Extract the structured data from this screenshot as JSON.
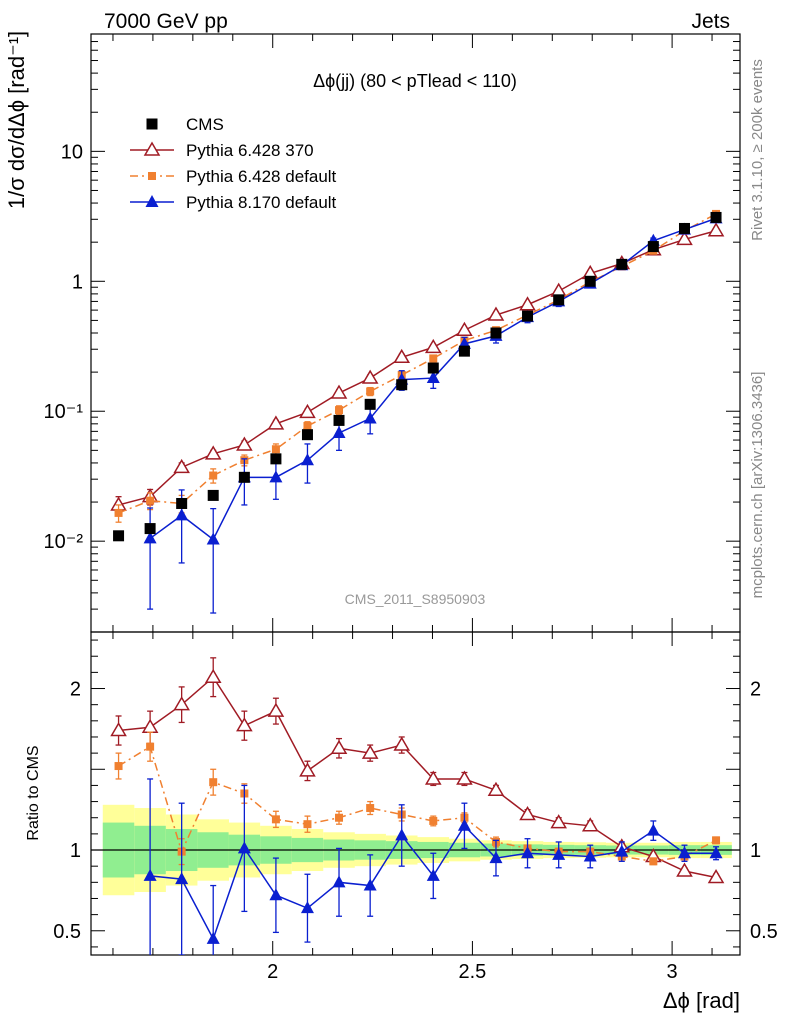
{
  "header": {
    "left": "7000 GeV pp",
    "right": "Jets"
  },
  "side_text": {
    "rivet": "Rivet 3.1.10, ≥ 200k events",
    "mcplots": "mcplots.cern.ch [arXiv:1306.3436]"
  },
  "chart_data": [
    {
      "type": "scatter",
      "title": "Δϕ(jj) (80 < pTlead < 110)",
      "watermark": "CMS_2011_S8950903",
      "ylabel": "1/σ dσ/dΔϕ [rad⁻¹]",
      "yscale": "log",
      "ylim": [
        0.002,
        80
      ],
      "xlim": [
        1.545,
        3.17
      ],
      "yticks": [
        {
          "v": 0.01,
          "label": "10⁻²"
        },
        {
          "v": 0.1,
          "label": "10⁻¹"
        },
        {
          "v": 1,
          "label": "1"
        },
        {
          "v": 10,
          "label": "10"
        }
      ],
      "legend_position": "top-left",
      "x": [
        1.614,
        1.693,
        1.772,
        1.851,
        1.929,
        2.008,
        2.087,
        2.166,
        2.244,
        2.323,
        2.402,
        2.48,
        2.559,
        2.638,
        2.716,
        2.795,
        2.874,
        2.953,
        3.031,
        3.11
      ],
      "series": [
        {
          "name": "CMS",
          "color": "#000000",
          "marker": "square",
          "values": [
            0.011,
            0.0125,
            0.0195,
            0.0225,
            0.031,
            0.043,
            0.066,
            0.085,
            0.113,
            0.16,
            0.215,
            0.29,
            0.4,
            0.54,
            0.72,
            1.0,
            1.35,
            1.85,
            2.55,
            3.1
          ]
        },
        {
          "name": "Pythia 6.428 370",
          "color": "#a01b24",
          "marker": "triangle-open",
          "line": "solid",
          "values": [
            0.019,
            0.022,
            0.037,
            0.047,
            0.055,
            0.08,
            0.098,
            0.138,
            0.18,
            0.26,
            0.31,
            0.42,
            0.55,
            0.66,
            0.84,
            1.15,
            1.37,
            1.75,
            2.1,
            2.45
          ],
          "errors": [
            0.003,
            0.003,
            0.003,
            0.003,
            0.004,
            0.005,
            0.006,
            0.008,
            0.01,
            0.014,
            0.016,
            0.02,
            0.025,
            0.03,
            0.035,
            0.045,
            0.05,
            0.06,
            0.07,
            0.08
          ]
        },
        {
          "name": "Pythia 6.428 default",
          "color": "#f08030",
          "marker": "square-small",
          "line": "dashdot",
          "values": [
            0.0165,
            0.0205,
            0.0195,
            0.032,
            0.042,
            0.051,
            0.077,
            0.102,
            0.142,
            0.19,
            0.255,
            0.35,
            0.42,
            0.55,
            0.72,
            0.99,
            1.3,
            1.72,
            2.45,
            3.3
          ],
          "errors": [
            0.0025,
            0.003,
            0.003,
            0.004,
            0.004,
            0.005,
            0.006,
            0.008,
            0.01,
            0.012,
            0.015,
            0.02,
            0.025,
            0.03,
            0.035,
            0.045,
            0.05,
            0.06,
            0.08,
            0.1
          ]
        },
        {
          "name": "Pythia 8.170 default",
          "color": "#0a1fd0",
          "marker": "triangle-filled",
          "line": "solid",
          "values": [
            null,
            0.0105,
            0.0158,
            0.0103,
            0.031,
            0.031,
            0.042,
            0.068,
            0.088,
            0.175,
            0.18,
            0.33,
            0.38,
            0.53,
            0.7,
            0.96,
            1.33,
            2.05,
            2.5,
            3.05
          ],
          "err_lo": [
            null,
            0.0075,
            0.009,
            0.0075,
            0.012,
            0.01,
            0.014,
            0.018,
            0.021,
            0.03,
            0.03,
            0.04,
            0.045,
            0.05,
            0.06,
            0.07,
            0.08,
            0.1,
            0.11,
            0.13
          ],
          "err_hi": [
            null,
            0.0075,
            0.009,
            0.0075,
            0.012,
            0.01,
            0.014,
            0.018,
            0.021,
            0.03,
            0.03,
            0.04,
            0.045,
            0.05,
            0.06,
            0.07,
            0.08,
            0.1,
            0.11,
            0.13
          ]
        }
      ]
    },
    {
      "type": "scatter",
      "ylabel": "Ratio to CMS",
      "xlabel": "Δϕ [rad]",
      "ylim": [
        0.35,
        2.35
      ],
      "xlim": [
        1.545,
        3.17
      ],
      "yticks": [
        {
          "v": 0.5,
          "label": "0.5"
        },
        {
          "v": 1,
          "label": "1"
        },
        {
          "v": 2,
          "label": "2"
        }
      ],
      "xticks": [
        {
          "v": 2,
          "label": "2"
        },
        {
          "v": 2.5,
          "label": "2.5"
        },
        {
          "v": 3,
          "label": "3"
        }
      ],
      "x": [
        1.614,
        1.693,
        1.772,
        1.851,
        1.929,
        2.008,
        2.087,
        2.166,
        2.244,
        2.323,
        2.402,
        2.48,
        2.559,
        2.638,
        2.716,
        2.795,
        2.874,
        2.953,
        3.031,
        3.11
      ],
      "bands": {
        "inner_color": "#90ee90",
        "outer_color": "#ffff99",
        "inner": [
          0.17,
          0.15,
          0.13,
          0.11,
          0.095,
          0.085,
          0.075,
          0.065,
          0.06,
          0.055,
          0.05,
          0.045,
          0.04,
          0.035,
          0.032,
          0.03,
          0.028,
          0.028,
          0.03,
          0.03
        ],
        "outer": [
          0.28,
          0.26,
          0.22,
          0.19,
          0.17,
          0.15,
          0.13,
          0.11,
          0.1,
          0.09,
          0.08,
          0.07,
          0.06,
          0.055,
          0.05,
          0.048,
          0.045,
          0.045,
          0.05,
          0.05
        ]
      },
      "series": [
        {
          "name": "Pythia 6.428 370",
          "color": "#a01b24",
          "marker": "triangle-open",
          "line": "solid",
          "values": [
            1.74,
            1.76,
            1.9,
            2.07,
            1.77,
            1.86,
            1.49,
            1.63,
            1.6,
            1.65,
            1.44,
            1.44,
            1.37,
            1.22,
            1.17,
            1.15,
            1.02,
            0.96,
            0.87,
            0.83
          ],
          "errors": [
            0.09,
            0.1,
            0.11,
            0.12,
            0.09,
            0.08,
            0.06,
            0.06,
            0.05,
            0.05,
            0.04,
            0.04,
            0.03,
            0.03,
            0.03,
            0.03,
            0.02,
            0.02,
            0.02,
            0.02
          ]
        },
        {
          "name": "Pythia 6.428 default",
          "color": "#f08030",
          "marker": "square-small",
          "line": "dashdot",
          "values": [
            1.52,
            1.64,
            0.99,
            1.42,
            1.35,
            1.19,
            1.16,
            1.2,
            1.26,
            1.22,
            1.18,
            1.2,
            1.05,
            1.01,
            0.99,
            0.99,
            0.96,
            0.93,
            0.96,
            1.06
          ],
          "errors": [
            0.08,
            0.09,
            0.08,
            0.08,
            0.06,
            0.05,
            0.05,
            0.04,
            0.04,
            0.04,
            0.03,
            0.03,
            0.03,
            0.02,
            0.02,
            0.02,
            0.02,
            0.02,
            0.02,
            0.02
          ]
        },
        {
          "name": "Pythia 8.170 default",
          "color": "#0a1fd0",
          "marker": "triangle-filled",
          "line": "solid",
          "values": [
            null,
            0.84,
            0.82,
            0.45,
            1.01,
            0.72,
            0.64,
            0.8,
            0.78,
            1.09,
            0.84,
            1.15,
            0.95,
            0.98,
            0.97,
            0.96,
            0.99,
            1.12,
            0.98,
            0.98
          ],
          "err_lo": [
            null,
            0.6,
            0.47,
            0.33,
            0.39,
            0.23,
            0.21,
            0.21,
            0.19,
            0.19,
            0.14,
            0.14,
            0.11,
            0.09,
            0.08,
            0.07,
            0.06,
            0.06,
            0.05,
            0.04
          ],
          "err_hi": [
            null,
            0.6,
            0.47,
            0.33,
            0.39,
            0.23,
            0.21,
            0.21,
            0.19,
            0.19,
            0.14,
            0.14,
            0.11,
            0.09,
            0.08,
            0.07,
            0.06,
            0.06,
            0.05,
            0.04
          ]
        }
      ]
    }
  ]
}
